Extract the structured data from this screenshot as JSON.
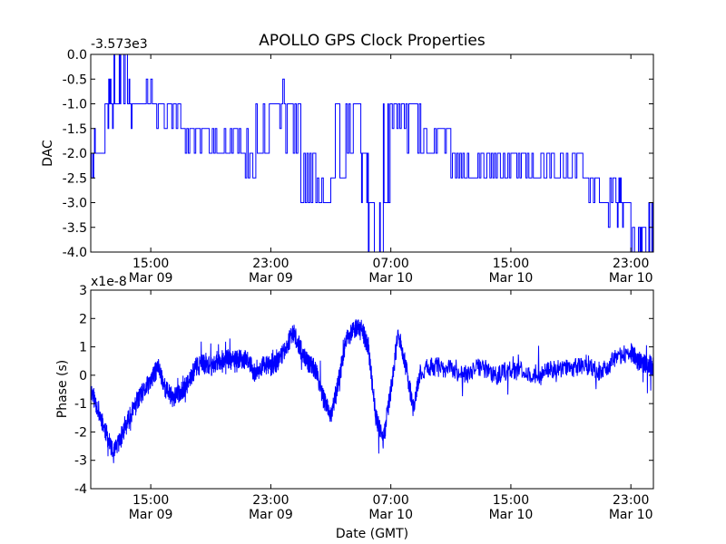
{
  "figure": {
    "title": "APOLLO GPS Clock Properties",
    "xlabel": "Date (GMT)"
  },
  "chart_data": [
    {
      "type": "line",
      "title": "APOLLO GPS Clock Properties",
      "ylabel": "DAC",
      "xlabel": "",
      "offset_label": "-3.573e3",
      "ylim": [
        -4.0,
        0.0
      ],
      "yticks": [
        0.0,
        -0.5,
        -1.0,
        -1.5,
        -2.0,
        -2.5,
        -3.0,
        -3.5,
        -4.0
      ],
      "ytick_labels": [
        "0.0",
        "-0.5",
        "-1.0",
        "-1.5",
        "-2.0",
        "-2.5",
        "-3.0",
        "-3.5",
        "-4.0"
      ],
      "xlim": [
        "2011-03-09 11:00",
        "2011-03-11 00:30"
      ],
      "xticks": [
        "2011-03-09 15:00",
        "2011-03-09 23:00",
        "2011-03-10 07:00",
        "2011-03-10 15:00",
        "2011-03-10 23:00"
      ],
      "xtick_labels": [
        [
          "15:00",
          "Mar 09"
        ],
        [
          "23:00",
          "Mar 09"
        ],
        [
          "07:00",
          "Mar 10"
        ],
        [
          "15:00",
          "Mar 10"
        ],
        [
          "23:00",
          "Mar 10"
        ]
      ],
      "grid": false,
      "color": "#0000ff",
      "series": [
        {
          "x": [
            "2011-03-09 11:00",
            "2011-03-09 11:30",
            "2011-03-09 12:00",
            "2011-03-09 12:30",
            "2011-03-09 13:00",
            "2011-03-09 13:30",
            "2011-03-09 14:00",
            "2011-03-09 15:00",
            "2011-03-09 16:00",
            "2011-03-09 17:00",
            "2011-03-09 18:00",
            "2011-03-09 19:00",
            "2011-03-09 20:00",
            "2011-03-09 21:00",
            "2011-03-09 22:00",
            "2011-03-09 23:00",
            "2011-03-10 00:00",
            "2011-03-10 01:00",
            "2011-03-10 02:00",
            "2011-03-10 03:00",
            "2011-03-10 04:00",
            "2011-03-10 05:00",
            "2011-03-10 05:30",
            "2011-03-10 06:00",
            "2011-03-10 06:30",
            "2011-03-10 07:00",
            "2011-03-10 08:00",
            "2011-03-10 09:00",
            "2011-03-10 10:00",
            "2011-03-10 11:00",
            "2011-03-10 12:00",
            "2011-03-10 13:00",
            "2011-03-10 14:00",
            "2011-03-10 15:00",
            "2011-03-10 16:00",
            "2011-03-10 17:00",
            "2011-03-10 18:00",
            "2011-03-10 19:00",
            "2011-03-10 20:00",
            "2011-03-10 21:00",
            "2011-03-10 22:00",
            "2011-03-10 22:30",
            "2011-03-10 23:00",
            "2011-03-10 23:30",
            "2011-03-11 00:00",
            "2011-03-11 00:30"
          ],
          "values": [
            -2.0,
            -2.0,
            -1.0,
            -1.0,
            0.0,
            -1.0,
            -1.0,
            -1.0,
            -1.0,
            -1.5,
            -1.5,
            -2.0,
            -1.5,
            -2.0,
            -2.0,
            -1.0,
            -1.0,
            -2.0,
            -3.0,
            -2.5,
            -1.0,
            -2.0,
            -3.0,
            -4.0,
            -3.0,
            -1.0,
            -1.0,
            -2.0,
            -1.5,
            -2.0,
            -2.5,
            -2.0,
            -2.5,
            -2.0,
            -2.5,
            -2.0,
            -2.5,
            -2.0,
            -2.5,
            -3.0,
            -3.0,
            -3.0,
            -4.0,
            -3.5,
            -4.0,
            -3.0
          ]
        }
      ]
    },
    {
      "type": "line",
      "title": "",
      "ylabel": "Phase (s)",
      "xlabel": "Date (GMT)",
      "offset_label": "x1e-8",
      "ylim": [
        -4,
        3
      ],
      "yticks": [
        3,
        2,
        1,
        0,
        -1,
        -2,
        -3,
        -4
      ],
      "ytick_labels": [
        "3",
        "2",
        "1",
        "0",
        "-1",
        "-2",
        "-3",
        "-4"
      ],
      "xlim": [
        "2011-03-09 11:00",
        "2011-03-11 00:30"
      ],
      "xticks": [
        "2011-03-09 15:00",
        "2011-03-09 23:00",
        "2011-03-10 07:00",
        "2011-03-10 15:00",
        "2011-03-10 23:00"
      ],
      "xtick_labels": [
        [
          "15:00",
          "Mar 09"
        ],
        [
          "23:00",
          "Mar 09"
        ],
        [
          "07:00",
          "Mar 10"
        ],
        [
          "15:00",
          "Mar 10"
        ],
        [
          "23:00",
          "Mar 10"
        ]
      ],
      "grid": false,
      "color": "#0000ff",
      "series": [
        {
          "x": [
            "2011-03-09 11:00",
            "2011-03-09 11:30",
            "2011-03-09 12:00",
            "2011-03-09 12:30",
            "2011-03-09 13:00",
            "2011-03-09 13:30",
            "2011-03-09 14:00",
            "2011-03-09 14:30",
            "2011-03-09 15:00",
            "2011-03-09 15:30",
            "2011-03-09 16:00",
            "2011-03-09 16:30",
            "2011-03-09 17:00",
            "2011-03-09 17:30",
            "2011-03-09 18:00",
            "2011-03-09 18:30",
            "2011-03-09 19:00",
            "2011-03-09 19:30",
            "2011-03-09 20:00",
            "2011-03-09 20:30",
            "2011-03-09 21:00",
            "2011-03-09 21:30",
            "2011-03-09 22:00",
            "2011-03-09 22:30",
            "2011-03-09 23:00",
            "2011-03-09 23:30",
            "2011-03-10 00:00",
            "2011-03-10 00:30",
            "2011-03-10 01:00",
            "2011-03-10 01:30",
            "2011-03-10 02:00",
            "2011-03-10 02:30",
            "2011-03-10 03:00",
            "2011-03-10 03:30",
            "2011-03-10 04:00",
            "2011-03-10 04:30",
            "2011-03-10 05:00",
            "2011-03-10 05:30",
            "2011-03-10 06:00",
            "2011-03-10 06:30",
            "2011-03-10 07:00",
            "2011-03-10 07:30",
            "2011-03-10 08:00",
            "2011-03-10 08:30",
            "2011-03-10 09:00",
            "2011-03-10 10:00",
            "2011-03-10 11:00",
            "2011-03-10 12:00",
            "2011-03-10 13:00",
            "2011-03-10 14:00",
            "2011-03-10 15:00",
            "2011-03-10 16:00",
            "2011-03-10 17:00",
            "2011-03-10 18:00",
            "2011-03-10 19:00",
            "2011-03-10 20:00",
            "2011-03-10 21:00",
            "2011-03-10 22:00",
            "2011-03-10 23:00",
            "2011-03-10 23:30",
            "2011-03-11 00:00",
            "2011-03-11 00:30"
          ],
          "values": [
            -0.5,
            -1.2,
            -2.0,
            -2.8,
            -2.2,
            -1.6,
            -1.0,
            -0.6,
            -0.2,
            0.3,
            -0.5,
            -0.8,
            -0.6,
            -0.3,
            0.3,
            0.4,
            0.3,
            0.5,
            0.6,
            0.5,
            0.6,
            0.5,
            0.0,
            0.4,
            0.3,
            0.5,
            1.0,
            1.5,
            0.9,
            0.4,
            0.2,
            -0.8,
            -1.4,
            -0.3,
            1.2,
            1.6,
            1.7,
            1.0,
            -1.5,
            -2.3,
            -0.5,
            1.5,
            0.3,
            -1.2,
            0.2,
            0.3,
            0.2,
            0.0,
            0.3,
            0.0,
            0.2,
            0.1,
            0.0,
            0.3,
            0.2,
            0.4,
            0.1,
            0.6,
            0.8,
            0.5,
            0.4,
            0.3
          ]
        }
      ]
    }
  ]
}
